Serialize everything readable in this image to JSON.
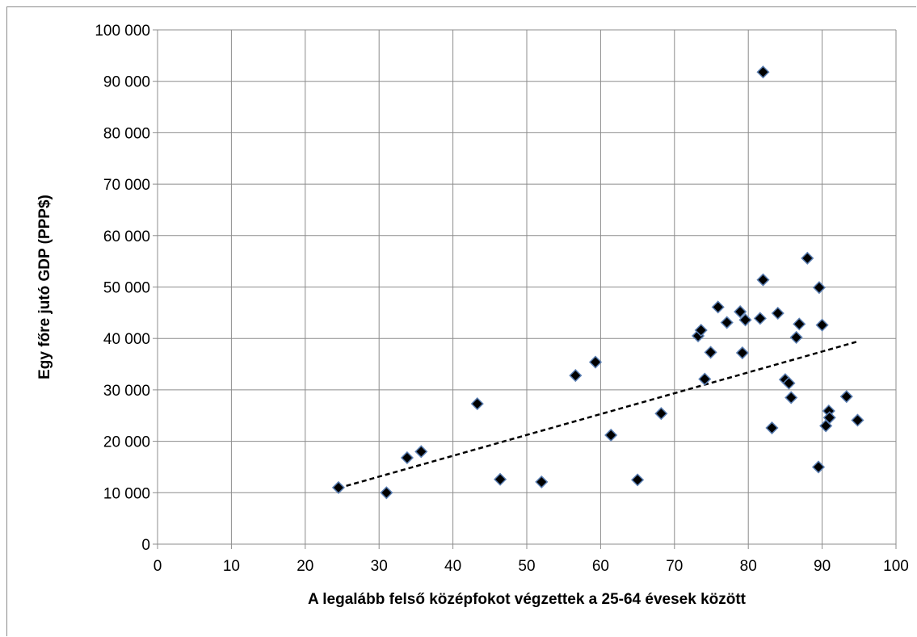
{
  "chart_data": {
    "type": "scatter",
    "xlabel": "A legalább felső középfokot végzettek a 25-64 évesek között",
    "ylabel": "Egy főre jutó GDP (PPP$)",
    "xlim": [
      0,
      100
    ],
    "ylim": [
      0,
      100000
    ],
    "x_ticks": [
      0,
      10,
      20,
      30,
      40,
      50,
      60,
      70,
      80,
      90,
      100
    ],
    "x_tick_labels": [
      "0",
      "10",
      "20",
      "30",
      "40",
      "50",
      "60",
      "70",
      "80",
      "90",
      "100"
    ],
    "y_ticks": [
      0,
      10000,
      20000,
      30000,
      40000,
      50000,
      60000,
      70000,
      80000,
      90000,
      100000
    ],
    "y_tick_labels": [
      "0",
      "10 000",
      "20 000",
      "30 000",
      "40 000",
      "50 000",
      "60 000",
      "70 000",
      "80 000",
      "90 000",
      "100 000"
    ],
    "grid": true,
    "marker": "diamond",
    "marker_fill": "#000000",
    "marker_edge": "#5b7fb3",
    "points": [
      {
        "x": 24.5,
        "y": 11000
      },
      {
        "x": 31.0,
        "y": 10000
      },
      {
        "x": 33.8,
        "y": 16800
      },
      {
        "x": 35.7,
        "y": 18000
      },
      {
        "x": 43.3,
        "y": 27300
      },
      {
        "x": 46.4,
        "y": 12600
      },
      {
        "x": 52.0,
        "y": 12100
      },
      {
        "x": 56.6,
        "y": 32800
      },
      {
        "x": 59.3,
        "y": 35400
      },
      {
        "x": 61.4,
        "y": 21200
      },
      {
        "x": 65.0,
        "y": 12500
      },
      {
        "x": 68.2,
        "y": 25400
      },
      {
        "x": 73.2,
        "y": 40500
      },
      {
        "x": 73.6,
        "y": 41600
      },
      {
        "x": 74.1,
        "y": 32100
      },
      {
        "x": 74.9,
        "y": 37300
      },
      {
        "x": 75.9,
        "y": 46100
      },
      {
        "x": 77.1,
        "y": 43100
      },
      {
        "x": 78.9,
        "y": 45200
      },
      {
        "x": 79.2,
        "y": 37200
      },
      {
        "x": 79.6,
        "y": 43600
      },
      {
        "x": 81.6,
        "y": 43900
      },
      {
        "x": 82.0,
        "y": 51400
      },
      {
        "x": 82.0,
        "y": 91800
      },
      {
        "x": 83.2,
        "y": 22600
      },
      {
        "x": 84.0,
        "y": 44900
      },
      {
        "x": 85.0,
        "y": 32000
      },
      {
        "x": 85.5,
        "y": 31300
      },
      {
        "x": 85.8,
        "y": 28500
      },
      {
        "x": 86.5,
        "y": 40200
      },
      {
        "x": 86.9,
        "y": 42800
      },
      {
        "x": 88.0,
        "y": 55600
      },
      {
        "x": 89.5,
        "y": 15000
      },
      {
        "x": 89.6,
        "y": 49900
      },
      {
        "x": 90.0,
        "y": 42600
      },
      {
        "x": 90.5,
        "y": 23000
      },
      {
        "x": 90.9,
        "y": 25900
      },
      {
        "x": 91.0,
        "y": 24600
      },
      {
        "x": 93.3,
        "y": 28700
      },
      {
        "x": 94.8,
        "y": 24100
      }
    ],
    "trendline": {
      "style": "dashed",
      "color": "#000000",
      "x": [
        24.5,
        94.8
      ],
      "y": [
        10900,
        39400
      ]
    }
  }
}
